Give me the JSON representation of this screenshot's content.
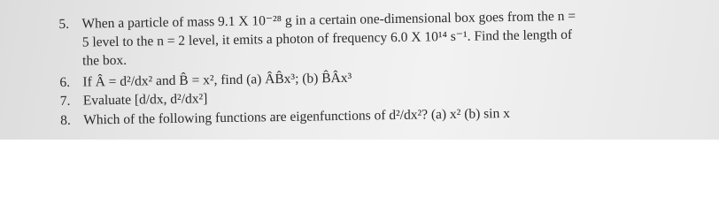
{
  "questions": [
    {
      "number": "5.",
      "lines": [
        "When a particle of mass 9.1 X 10⁻²⁸ g in a certain one-dimensional box goes from the n =",
        "5 level to the n = 2 level, it emits a photon of frequency 6.0 X 10¹⁴ s⁻¹. Find the length of",
        "the box."
      ]
    },
    {
      "number": "6.",
      "lines": [
        "If Â = d²/dx² and B̂ = x², find (a) ÂB̂x³; (b) B̂Âx³"
      ]
    },
    {
      "number": "7.",
      "lines": [
        "Evaluate [d/dx, d²/dx²]"
      ]
    },
    {
      "number": "8.",
      "lines": [
        "Which of the following functions are eigenfunctions of d²/dx²? (a) x² (b) sin x"
      ]
    }
  ]
}
